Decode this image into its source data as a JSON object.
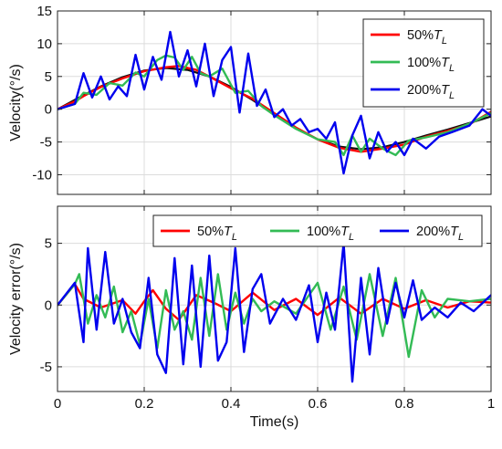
{
  "chart_data": [
    {
      "type": "line",
      "panel": "top",
      "title": "",
      "xlabel": "",
      "ylabel": "Velocity(°/s)",
      "xlim": [
        0,
        1
      ],
      "ylim": [
        -13,
        15
      ],
      "xticks": [
        0,
        0.2,
        0.4,
        0.6,
        0.8,
        1
      ],
      "yticks": [
        15,
        10,
        5,
        0,
        -5,
        -10
      ],
      "ytick_labels": [
        "15",
        "10",
        "5",
        "0",
        "-5",
        "-10"
      ],
      "grid": true,
      "legend": {
        "placement": "top-right",
        "orientation": "vertical",
        "entries": [
          {
            "label": "50%",
            "subscript_symbol": "T",
            "subscript": "L",
            "color": "#ff0000"
          },
          {
            "label": "100%",
            "subscript_symbol": "T",
            "subscript": "L",
            "color": "#33bb55"
          },
          {
            "label": "200%",
            "subscript_symbol": "T",
            "subscript": "L",
            "color": "#0000ee"
          }
        ]
      },
      "series": [
        {
          "color": "#111111",
          "x": [
            0,
            0.05,
            0.1,
            0.15,
            0.2,
            0.25,
            0.3,
            0.35,
            0.4,
            0.45,
            0.5,
            0.55,
            0.6,
            0.65,
            0.7,
            0.75,
            0.8,
            0.85,
            0.9,
            0.95,
            1.0
          ],
          "y": [
            0,
            1.8,
            3.5,
            4.9,
            5.9,
            6.3,
            6.0,
            5.0,
            3.4,
            1.4,
            -0.8,
            -2.9,
            -4.6,
            -5.7,
            -6.1,
            -5.8,
            -5.0,
            -4.0,
            -3.1,
            -2.1,
            -1.1
          ]
        },
        {
          "name": "50%T_L",
          "color": "#ff0000",
          "x": [
            0,
            0.04,
            0.06,
            0.1,
            0.15,
            0.2,
            0.25,
            0.28,
            0.32,
            0.35,
            0.4,
            0.45,
            0.5,
            0.55,
            0.6,
            0.65,
            0.7,
            0.75,
            0.8,
            0.85,
            0.9,
            0.95,
            1.0
          ],
          "y": [
            0,
            1.2,
            2.0,
            3.4,
            4.7,
            5.8,
            6.4,
            6.6,
            6.0,
            5.0,
            3.2,
            1.6,
            -0.6,
            -2.8,
            -4.6,
            -5.9,
            -6.5,
            -6.0,
            -5.4,
            -4.2,
            -3.3,
            -2.3,
            -0.4
          ]
        },
        {
          "name": "100%T_L",
          "color": "#33bb55",
          "x": [
            0,
            0.04,
            0.06,
            0.09,
            0.12,
            0.15,
            0.18,
            0.2,
            0.23,
            0.25,
            0.27,
            0.29,
            0.31,
            0.33,
            0.35,
            0.38,
            0.41,
            0.44,
            0.47,
            0.5,
            0.55,
            0.6,
            0.64,
            0.66,
            0.68,
            0.7,
            0.72,
            0.75,
            0.78,
            0.81,
            0.85,
            0.9,
            0.95,
            1.0
          ],
          "y": [
            0,
            0.8,
            2.5,
            2.2,
            4.0,
            3.6,
            5.6,
            5.0,
            7.5,
            8.2,
            7.9,
            6.0,
            8.0,
            5.5,
            5.0,
            6.2,
            2.5,
            2.8,
            0.5,
            -0.9,
            -3.0,
            -4.6,
            -5.0,
            -7.0,
            -4.0,
            -6.5,
            -4.5,
            -6.0,
            -7.0,
            -4.8,
            -4.3,
            -3.5,
            -2.2,
            -0.6
          ]
        },
        {
          "name": "200%T_L",
          "color": "#0000ee",
          "x": [
            0,
            0.04,
            0.06,
            0.08,
            0.1,
            0.12,
            0.14,
            0.16,
            0.18,
            0.2,
            0.22,
            0.24,
            0.26,
            0.28,
            0.3,
            0.32,
            0.34,
            0.36,
            0.38,
            0.4,
            0.42,
            0.44,
            0.46,
            0.48,
            0.5,
            0.52,
            0.54,
            0.56,
            0.58,
            0.6,
            0.62,
            0.64,
            0.66,
            0.68,
            0.7,
            0.72,
            0.74,
            0.76,
            0.78,
            0.8,
            0.82,
            0.85,
            0.88,
            0.91,
            0.95,
            0.98,
            1.0
          ],
          "y": [
            0,
            0.8,
            5.5,
            1.8,
            5.0,
            1.5,
            3.5,
            2.0,
            8.3,
            3.0,
            8.0,
            4.5,
            11.8,
            5.0,
            9.0,
            3.5,
            10.0,
            2.0,
            7.5,
            9.5,
            -0.5,
            8.5,
            0.5,
            3.0,
            -1.2,
            0.0,
            -2.5,
            -1.5,
            -3.5,
            -3.0,
            -4.5,
            -2.0,
            -9.8,
            -4.0,
            -1.0,
            -7.5,
            -3.5,
            -6.5,
            -5.0,
            -7.0,
            -4.5,
            -6.0,
            -4.2,
            -3.5,
            -2.5,
            0.0,
            -1.0
          ]
        }
      ]
    },
    {
      "type": "line",
      "panel": "bottom",
      "title": "",
      "xlabel": "Time(s)",
      "ylabel": "Velocity error(°/s)",
      "xlim": [
        0,
        1
      ],
      "ylim": [
        -7,
        8
      ],
      "xticks": [
        0,
        0.2,
        0.4,
        0.6,
        0.8,
        1
      ],
      "xtick_labels": [
        "0",
        "0.2",
        "0.4",
        "0.6",
        "0.8",
        "1"
      ],
      "yticks": [
        5,
        0,
        -5
      ],
      "ytick_labels": [
        "5",
        "0",
        "-5"
      ],
      "grid": true,
      "legend": {
        "placement": "top-right",
        "orientation": "horizontal",
        "entries": [
          {
            "label": "50%",
            "subscript_symbol": "T",
            "subscript": "L",
            "color": "#ff0000"
          },
          {
            "label": "100%",
            "subscript_symbol": "T",
            "subscript": "L",
            "color": "#33bb55"
          },
          {
            "label": "200%",
            "subscript_symbol": "T",
            "subscript": "L",
            "color": "#0000ee"
          }
        ]
      },
      "series": [
        {
          "name": "50%T_L",
          "color": "#ff0000",
          "x": [
            0,
            0.04,
            0.06,
            0.1,
            0.15,
            0.18,
            0.2,
            0.22,
            0.25,
            0.28,
            0.32,
            0.36,
            0.4,
            0.45,
            0.5,
            0.55,
            0.6,
            0.65,
            0.7,
            0.75,
            0.8,
            0.85,
            0.9,
            0.95,
            1.0
          ],
          "y": [
            0,
            1.7,
            0.5,
            -0.2,
            0.4,
            -0.7,
            0.3,
            1.2,
            -0.3,
            -1.2,
            0.8,
            0.2,
            -0.5,
            1.0,
            -0.4,
            0.5,
            -0.8,
            0.6,
            -0.7,
            0.5,
            -0.3,
            0.4,
            -0.2,
            0.3,
            0.2
          ]
        },
        {
          "name": "100%T_L",
          "color": "#33bb55",
          "x": [
            0,
            0.04,
            0.05,
            0.07,
            0.09,
            0.11,
            0.13,
            0.15,
            0.17,
            0.19,
            0.21,
            0.23,
            0.25,
            0.27,
            0.29,
            0.31,
            0.33,
            0.35,
            0.37,
            0.39,
            0.41,
            0.43,
            0.45,
            0.47,
            0.5,
            0.55,
            0.6,
            0.63,
            0.66,
            0.69,
            0.72,
            0.75,
            0.78,
            0.81,
            0.84,
            0.87,
            0.9,
            0.95,
            1.0
          ],
          "y": [
            0,
            1.7,
            2.5,
            -1.5,
            0.8,
            -1.0,
            1.5,
            -2.2,
            -0.5,
            -3.2,
            0.5,
            -3.5,
            1.2,
            -2.0,
            -0.5,
            -2.8,
            2.2,
            -2.5,
            2.5,
            -2.0,
            1.0,
            -1.5,
            0.5,
            -0.5,
            0.3,
            -0.7,
            1.8,
            -2.0,
            1.5,
            -2.8,
            2.5,
            -2.5,
            2.2,
            -4.2,
            1.2,
            -1.0,
            0.5,
            0.3,
            0.5
          ]
        },
        {
          "name": "200%T_L",
          "color": "#0000ee",
          "x": [
            0,
            0.04,
            0.06,
            0.07,
            0.09,
            0.11,
            0.13,
            0.15,
            0.17,
            0.19,
            0.21,
            0.23,
            0.25,
            0.27,
            0.29,
            0.31,
            0.33,
            0.35,
            0.37,
            0.39,
            0.41,
            0.43,
            0.45,
            0.47,
            0.49,
            0.52,
            0.55,
            0.58,
            0.6,
            0.62,
            0.64,
            0.66,
            0.68,
            0.7,
            0.72,
            0.74,
            0.76,
            0.78,
            0.8,
            0.82,
            0.84,
            0.87,
            0.9,
            0.93,
            0.96,
            1.0
          ],
          "y": [
            0,
            1.8,
            -3.0,
            4.6,
            -2.0,
            4.3,
            -1.5,
            0.5,
            -2.2,
            -3.5,
            2.2,
            -4.0,
            -5.5,
            3.8,
            -4.8,
            3.2,
            -5.0,
            4.0,
            -4.5,
            -3.0,
            4.6,
            -3.8,
            1.3,
            2.5,
            -1.5,
            0.5,
            -1.2,
            1.6,
            -3.0,
            1.0,
            -2.0,
            5.0,
            -6.2,
            2.2,
            -4.0,
            3.0,
            -1.5,
            1.8,
            -1.0,
            2.0,
            -1.2,
            -0.2,
            -1.0,
            0.2,
            -0.5,
            0.8
          ]
        }
      ]
    }
  ]
}
